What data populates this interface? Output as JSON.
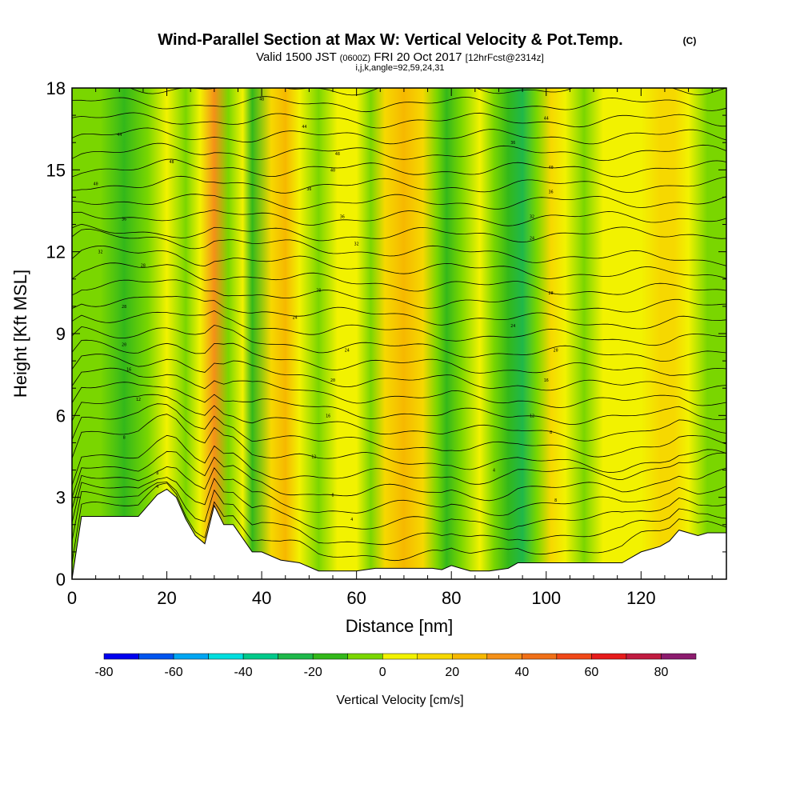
{
  "header": {
    "title": "Wind-Parallel Section at Max W: Vertical Velocity & Pot.Temp.",
    "title_mark": "(C)",
    "valid_prefix": "Valid 1500 JST",
    "valid_utc": "(0600Z)",
    "valid_date": "FRI 20 Oct 2017",
    "forecast": "[12hrFcst@2314z]",
    "ijk": "i,j,k,angle=92,59,24,31"
  },
  "chart_data": {
    "type": "heatmap",
    "xlabel": "Distance [nm]",
    "ylabel": "Height [Kft MSL]",
    "xlim": [
      0,
      138
    ],
    "ylim": [
      0,
      18
    ],
    "x_ticks": [
      0,
      20,
      40,
      60,
      80,
      100,
      120
    ],
    "y_ticks": [
      0,
      3,
      6,
      9,
      12,
      15,
      18
    ],
    "terrain": {
      "x": [
        0,
        2,
        14,
        16,
        18,
        20,
        22,
        24,
        26,
        28,
        30,
        32,
        34,
        36,
        38,
        40,
        44,
        48,
        52,
        56,
        60,
        64,
        68,
        72,
        76,
        78,
        80,
        82,
        84,
        88,
        92,
        94,
        96,
        100,
        104,
        108,
        112,
        116,
        118,
        120,
        124,
        126,
        128,
        130,
        132,
        134,
        136,
        138
      ],
      "height_kft": [
        0,
        2.3,
        2.3,
        2.7,
        3.1,
        3.3,
        3.0,
        2.2,
        1.6,
        1.3,
        2.7,
        2.0,
        2.0,
        1.5,
        1.0,
        1.0,
        0.7,
        0.6,
        0.3,
        0.3,
        0.3,
        0.4,
        0.4,
        0.4,
        0.4,
        0.35,
        0.5,
        0.4,
        0.3,
        0.3,
        0.4,
        0.6,
        0.6,
        0.6,
        0.6,
        0.6,
        0.6,
        0.6,
        0.8,
        1.0,
        1.2,
        1.4,
        1.8,
        1.7,
        1.6,
        1.7,
        1.7,
        1.7
      ]
    },
    "colorbar": {
      "label": "Vertical Velocity [cm/s]",
      "levels": [
        -80,
        -70,
        -60,
        -50,
        -40,
        -30,
        -20,
        -10,
        0,
        10,
        20,
        30,
        40,
        50,
        60,
        70,
        80,
        90
      ],
      "colors": [
        "#0000ee",
        "#0055ee",
        "#00a6f2",
        "#00dede",
        "#00c98a",
        "#1fb84a",
        "#33b81a",
        "#7ad600",
        "#f2f200",
        "#f6d800",
        "#f6b800",
        "#f49018",
        "#f07018",
        "#f04818",
        "#e61c1c",
        "#c01c40",
        "#8c1c6e",
        "#5a1c8a"
      ],
      "tick_labels": [
        "-80",
        "-60",
        "-40",
        "-20",
        "0",
        "20",
        "40",
        "60",
        "80"
      ]
    },
    "vertical_velocity_bands": [
      {
        "x": 0,
        "w": -5
      },
      {
        "x": 6,
        "w": -8
      },
      {
        "x": 11,
        "w": -13
      },
      {
        "x": 16,
        "w": -3
      },
      {
        "x": 20,
        "w": 8
      },
      {
        "x": 24,
        "w": -2
      },
      {
        "x": 27,
        "w": 6
      },
      {
        "x": 30,
        "w": 35
      },
      {
        "x": 33,
        "w": -10
      },
      {
        "x": 36,
        "w": 3
      },
      {
        "x": 38,
        "w": -12
      },
      {
        "x": 42,
        "w": 14
      },
      {
        "x": 45,
        "w": 22
      },
      {
        "x": 48,
        "w": 9
      },
      {
        "x": 52,
        "w": -10
      },
      {
        "x": 56,
        "w": 7
      },
      {
        "x": 60,
        "w": 2
      },
      {
        "x": 63,
        "w": -6
      },
      {
        "x": 66,
        "w": 18
      },
      {
        "x": 70,
        "w": 24
      },
      {
        "x": 74,
        "w": 15
      },
      {
        "x": 77,
        "w": -4
      },
      {
        "x": 79,
        "w": -18
      },
      {
        "x": 82,
        "w": -8
      },
      {
        "x": 86,
        "w": 2
      },
      {
        "x": 89,
        "w": -8
      },
      {
        "x": 92,
        "w": -16
      },
      {
        "x": 95,
        "w": -22
      },
      {
        "x": 98,
        "w": -6
      },
      {
        "x": 101,
        "w": 12
      },
      {
        "x": 104,
        "w": 4
      },
      {
        "x": 108,
        "w": -6
      },
      {
        "x": 112,
        "w": 3
      },
      {
        "x": 116,
        "w": 8
      },
      {
        "x": 120,
        "w": 4
      },
      {
        "x": 124,
        "w": 14
      },
      {
        "x": 127,
        "w": 18
      },
      {
        "x": 130,
        "w": 6
      },
      {
        "x": 134,
        "w": -4
      },
      {
        "x": 138,
        "w": -2
      }
    ],
    "potential_temperature_contours": {
      "count": 32,
      "bottom_kft": 0.6,
      "top_kft": 19.2
    },
    "contour_labels": [
      {
        "x": 40,
        "y": 17.6,
        "text": "48"
      },
      {
        "x": 49,
        "y": 16.6,
        "text": "44"
      },
      {
        "x": 10,
        "y": 16.3,
        "text": "44"
      },
      {
        "x": 56,
        "y": 15.6,
        "text": "48"
      },
      {
        "x": 21,
        "y": 15.3,
        "text": "48"
      },
      {
        "x": 55,
        "y": 15.0,
        "text": "40"
      },
      {
        "x": 5,
        "y": 14.5,
        "text": "40"
      },
      {
        "x": 50,
        "y": 14.3,
        "text": "36"
      },
      {
        "x": 57,
        "y": 13.3,
        "text": "36"
      },
      {
        "x": 11,
        "y": 13.2,
        "text": "36"
      },
      {
        "x": 6,
        "y": 12.0,
        "text": "32"
      },
      {
        "x": 60,
        "y": 12.3,
        "text": "32"
      },
      {
        "x": 15,
        "y": 11.5,
        "text": "28"
      },
      {
        "x": 52,
        "y": 10.6,
        "text": "28"
      },
      {
        "x": 11,
        "y": 10.0,
        "text": "28"
      },
      {
        "x": 47,
        "y": 9.6,
        "text": "24"
      },
      {
        "x": 11,
        "y": 8.6,
        "text": "20"
      },
      {
        "x": 58,
        "y": 8.4,
        "text": "24"
      },
      {
        "x": 12,
        "y": 7.7,
        "text": "16"
      },
      {
        "x": 55,
        "y": 7.3,
        "text": "20"
      },
      {
        "x": 14,
        "y": 6.6,
        "text": "12"
      },
      {
        "x": 54,
        "y": 6.0,
        "text": "16"
      },
      {
        "x": 11,
        "y": 5.2,
        "text": "8"
      },
      {
        "x": 51,
        "y": 4.5,
        "text": "12"
      },
      {
        "x": 18,
        "y": 3.9,
        "text": "8"
      },
      {
        "x": 18,
        "y": 3.4,
        "text": "4"
      },
      {
        "x": 55,
        "y": 3.1,
        "text": "8"
      },
      {
        "x": 59,
        "y": 2.2,
        "text": "4"
      },
      {
        "x": 100,
        "y": 16.9,
        "text": "44"
      },
      {
        "x": 93,
        "y": 16.0,
        "text": "36"
      },
      {
        "x": 101,
        "y": 15.1,
        "text": "40"
      },
      {
        "x": 101,
        "y": 14.2,
        "text": "36"
      },
      {
        "x": 97,
        "y": 13.3,
        "text": "32"
      },
      {
        "x": 97,
        "y": 12.5,
        "text": "24"
      },
      {
        "x": 101,
        "y": 10.5,
        "text": "28"
      },
      {
        "x": 93,
        "y": 9.3,
        "text": "24"
      },
      {
        "x": 102,
        "y": 8.4,
        "text": "20"
      },
      {
        "x": 100,
        "y": 7.3,
        "text": "16"
      },
      {
        "x": 97,
        "y": 6.0,
        "text": "12"
      },
      {
        "x": 101,
        "y": 5.4,
        "text": "8"
      },
      {
        "x": 89,
        "y": 4.0,
        "text": "4"
      },
      {
        "x": 102,
        "y": 2.9,
        "text": "8"
      }
    ]
  }
}
